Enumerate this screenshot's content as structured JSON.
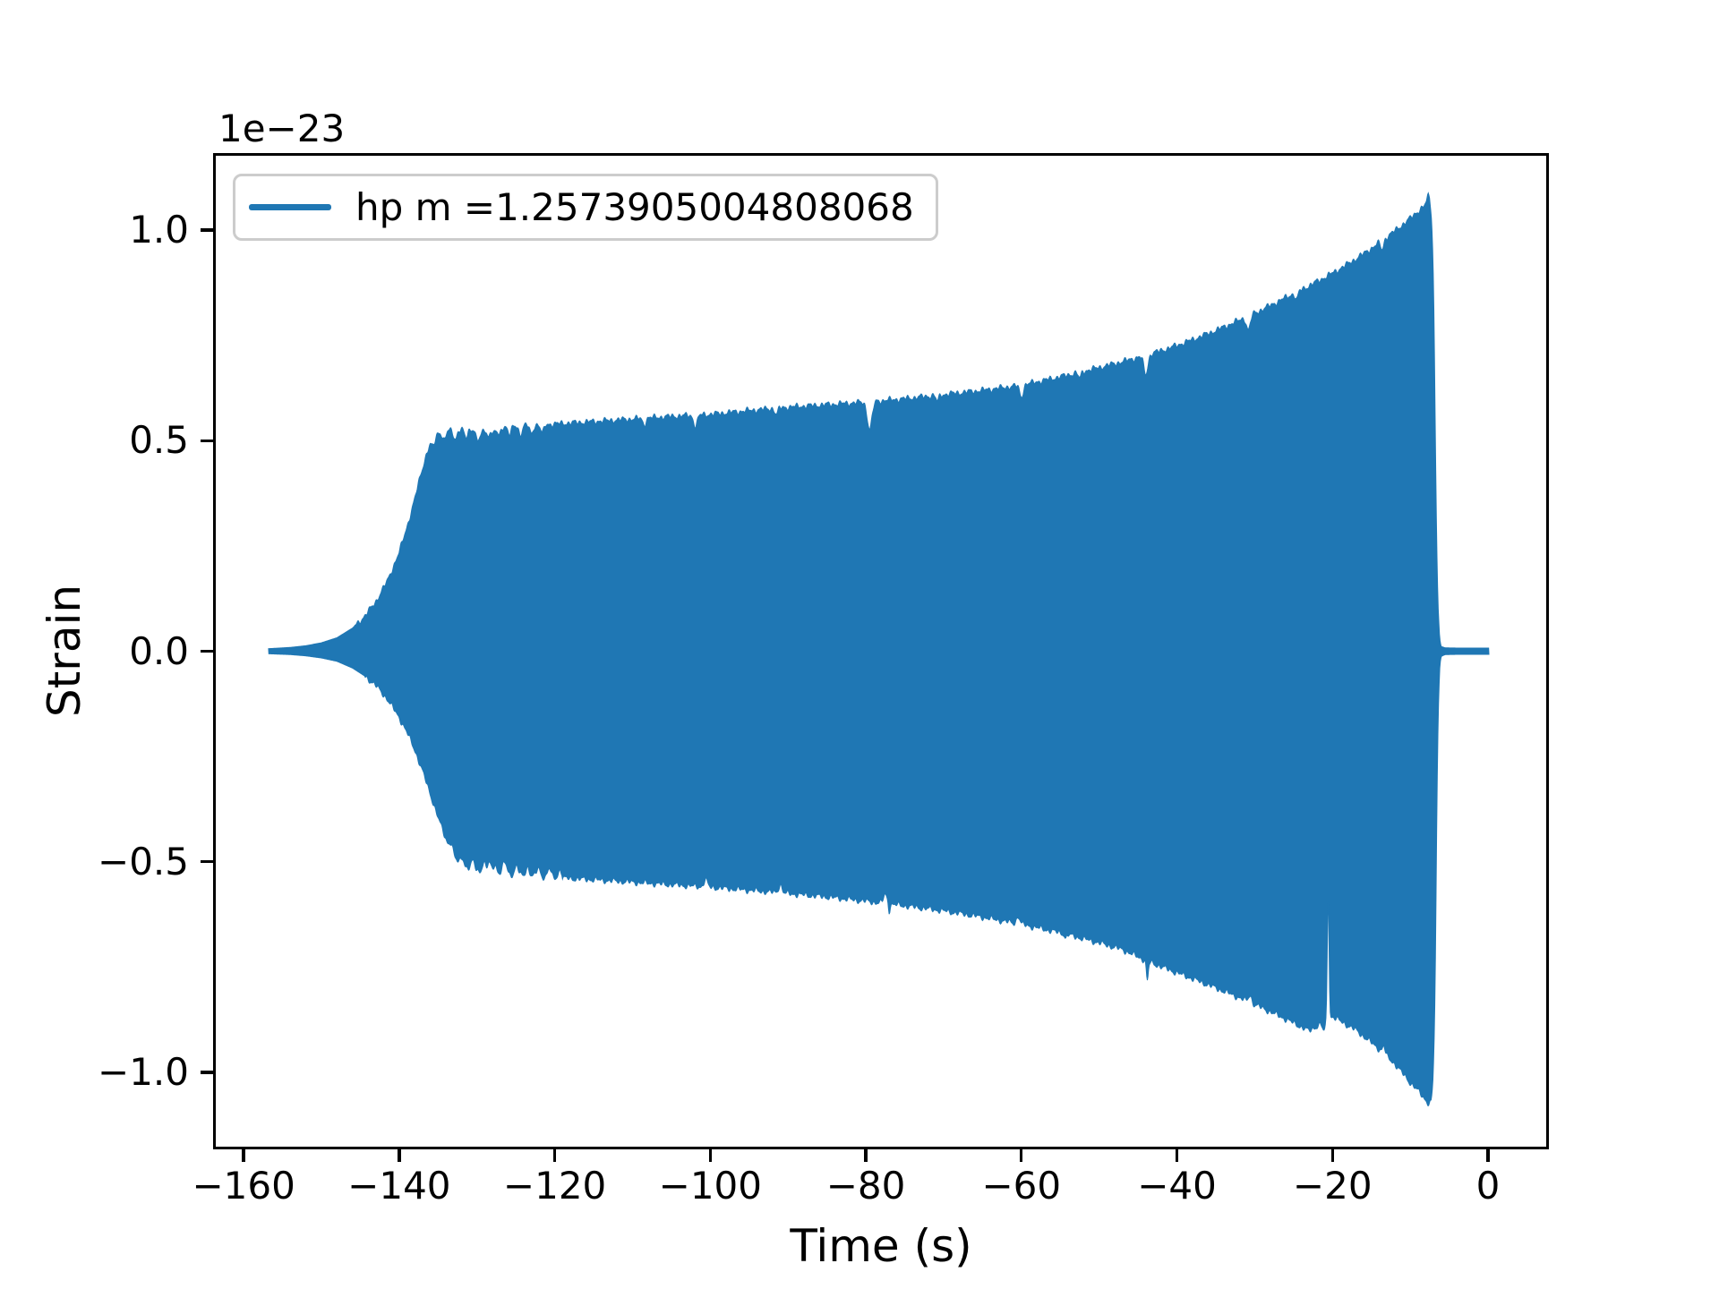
{
  "figure": {
    "background": "#ffffff"
  },
  "axes": {
    "offset_text": "1e−23",
    "xlabel": "Time (s)",
    "ylabel": "Strain",
    "spine_color": "#000000"
  },
  "legend": {
    "label": "hp m =1.2573905004808068",
    "line_color": "#1f77b4",
    "border_color": "#cccccc",
    "position": "upper left"
  },
  "chart_data": {
    "type": "line",
    "title": "",
    "xlabel": "Time (s)",
    "ylabel": "Strain",
    "y_offset_factor": "1e−23",
    "grid": false,
    "legend_position": "upper left",
    "series": [
      {
        "name": "hp m =1.2573905004808068",
        "color": "#1f77b4"
      }
    ],
    "xlim": [
      -163.7,
      7.6
    ],
    "ylim": [
      -1.1786,
      1.1786
    ],
    "x_ticks": [
      {
        "value": -160,
        "label": "−160"
      },
      {
        "value": -140,
        "label": "−140"
      },
      {
        "value": -120,
        "label": "−120"
      },
      {
        "value": -100,
        "label": "−100"
      },
      {
        "value": -80,
        "label": "−80"
      },
      {
        "value": -60,
        "label": "−60"
      },
      {
        "value": -40,
        "label": "−40"
      },
      {
        "value": -20,
        "label": "−20"
      },
      {
        "value": 0,
        "label": "0"
      }
    ],
    "y_ticks": [
      {
        "value": 1.0,
        "label": "1.0"
      },
      {
        "value": 0.5,
        "label": "0.5"
      },
      {
        "value": 0.0,
        "label": "0.0"
      },
      {
        "value": -0.5,
        "label": "−0.5"
      },
      {
        "value": -1.0,
        "label": "−1.0"
      }
    ],
    "t_start": -156.8,
    "t_end": 0.12,
    "envelope_upper": [
      [
        -156.8,
        0.006
      ],
      [
        -154,
        0.009
      ],
      [
        -152,
        0.013
      ],
      [
        -150,
        0.02
      ],
      [
        -148,
        0.032
      ],
      [
        -146,
        0.055
      ],
      [
        -144.5,
        0.082
      ],
      [
        -143,
        0.118
      ],
      [
        -141.5,
        0.168
      ],
      [
        -140,
        0.235
      ],
      [
        -139,
        0.295
      ],
      [
        -138,
        0.362
      ],
      [
        -137.2,
        0.422
      ],
      [
        -136.5,
        0.468
      ],
      [
        -136,
        0.494
      ],
      [
        -135.5,
        0.51
      ],
      [
        -135,
        0.518
      ],
      [
        -134,
        0.523
      ],
      [
        -132,
        0.526
      ],
      [
        -130,
        0.529
      ],
      [
        -128,
        0.532
      ],
      [
        -126,
        0.534
      ],
      [
        -124,
        0.536
      ],
      [
        -122,
        0.538
      ],
      [
        -120,
        0.54
      ],
      [
        -115,
        0.546
      ],
      [
        -110,
        0.552
      ],
      [
        -105,
        0.558
      ],
      [
        -100,
        0.563
      ],
      [
        -95,
        0.572
      ],
      [
        -90,
        0.58
      ],
      [
        -85,
        0.586
      ],
      [
        -80,
        0.592
      ],
      [
        -75,
        0.6
      ],
      [
        -70,
        0.61
      ],
      [
        -65,
        0.62
      ],
      [
        -60,
        0.632
      ],
      [
        -55,
        0.652
      ],
      [
        -50,
        0.674
      ],
      [
        -47,
        0.688
      ],
      [
        -44,
        0.703
      ],
      [
        -41,
        0.72
      ],
      [
        -38,
        0.74
      ],
      [
        -35,
        0.762
      ],
      [
        -32,
        0.786
      ],
      [
        -29,
        0.812
      ],
      [
        -26,
        0.84
      ],
      [
        -23,
        0.868
      ],
      [
        -20,
        0.898
      ],
      [
        -18,
        0.92
      ],
      [
        -16,
        0.944
      ],
      [
        -14,
        0.97
      ],
      [
        -12,
        0.998
      ],
      [
        -11,
        1.013
      ],
      [
        -10,
        1.028
      ],
      [
        -9.3,
        1.04
      ],
      [
        -8.7,
        1.05
      ],
      [
        -8.2,
        1.057
      ],
      [
        -7.9,
        1.068
      ],
      [
        -7.7,
        1.082
      ],
      [
        -7.5,
        1.078
      ],
      [
        -7.3,
        1.04
      ],
      [
        -7.15,
        0.98
      ],
      [
        -7.0,
        0.87
      ],
      [
        -6.9,
        0.73
      ],
      [
        -6.8,
        0.56
      ],
      [
        -6.7,
        0.4
      ],
      [
        -6.6,
        0.27
      ],
      [
        -6.5,
        0.17
      ],
      [
        -6.4,
        0.1
      ],
      [
        -6.3,
        0.055
      ],
      [
        -6.2,
        0.03
      ],
      [
        -6.1,
        0.017
      ],
      [
        -6.0,
        0.011
      ],
      [
        -5.5,
        0.008
      ],
      [
        -4,
        0.0075
      ],
      [
        -2,
        0.0075
      ],
      [
        0.12,
        0.0075
      ]
    ],
    "envelope_lower": [
      [
        -156.8,
        0.006
      ],
      [
        -154,
        0.008
      ],
      [
        -152,
        0.011
      ],
      [
        -150,
        0.016
      ],
      [
        -148,
        0.024
      ],
      [
        -146,
        0.04
      ],
      [
        -144.5,
        0.058
      ],
      [
        -143,
        0.082
      ],
      [
        -141.5,
        0.115
      ],
      [
        -140,
        0.158
      ],
      [
        -139,
        0.193
      ],
      [
        -138,
        0.235
      ],
      [
        -137,
        0.285
      ],
      [
        -136,
        0.34
      ],
      [
        -135,
        0.395
      ],
      [
        -134.2,
        0.437
      ],
      [
        -133.5,
        0.468
      ],
      [
        -133,
        0.487
      ],
      [
        -132.5,
        0.5
      ],
      [
        -132,
        0.508
      ],
      [
        -131.5,
        0.513
      ],
      [
        -130.5,
        0.519
      ],
      [
        -129,
        0.524
      ],
      [
        -127,
        0.528
      ],
      [
        -125,
        0.531
      ],
      [
        -122,
        0.535
      ],
      [
        -120,
        0.538
      ],
      [
        -115,
        0.543
      ],
      [
        -110,
        0.549
      ],
      [
        -105,
        0.555
      ],
      [
        -100,
        0.561
      ],
      [
        -95,
        0.568
      ],
      [
        -90,
        0.576
      ],
      [
        -85,
        0.584
      ],
      [
        -80,
        0.594
      ],
      [
        -75,
        0.605
      ],
      [
        -70,
        0.617
      ],
      [
        -65,
        0.632
      ],
      [
        -60,
        0.649
      ],
      [
        -55,
        0.669
      ],
      [
        -50,
        0.693
      ],
      [
        -47,
        0.709
      ],
      [
        -44,
        0.735
      ],
      [
        -41,
        0.757
      ],
      [
        -38,
        0.778
      ],
      [
        -35,
        0.8
      ],
      [
        -32,
        0.823
      ],
      [
        -29,
        0.848
      ],
      [
        -26,
        0.874
      ],
      [
        -23,
        0.902
      ],
      [
        -20,
        0.868
      ],
      [
        -17,
        0.9
      ],
      [
        -14,
        0.945
      ],
      [
        -12,
        0.98
      ],
      [
        -10,
        1.025
      ],
      [
        -9,
        1.044
      ],
      [
        -8.2,
        1.062
      ],
      [
        -7.6,
        1.075
      ],
      [
        -7.3,
        1.07
      ],
      [
        -7.1,
        1.03
      ],
      [
        -6.95,
        0.95
      ],
      [
        -6.8,
        0.8
      ],
      [
        -6.7,
        0.62
      ],
      [
        -6.6,
        0.43
      ],
      [
        -6.5,
        0.27
      ],
      [
        -6.4,
        0.15
      ],
      [
        -6.3,
        0.08
      ],
      [
        -6.2,
        0.04
      ],
      [
        -6.1,
        0.02
      ],
      [
        -6.0,
        0.012
      ],
      [
        -5.5,
        0.008
      ],
      [
        -4,
        0.0075
      ],
      [
        -2,
        0.0075
      ],
      [
        0.12,
        0.0075
      ]
    ],
    "notches_upper": [
      [
        -129.6,
        0.22,
        0.022
      ],
      [
        -127.9,
        0.2,
        0.018
      ],
      [
        -108.5,
        0.2,
        0.015
      ],
      [
        -101.9,
        0.24,
        0.026
      ],
      [
        -91.5,
        0.2,
        0.015
      ],
      [
        -79.5,
        0.3,
        0.065
      ],
      [
        -70.8,
        0.18,
        0.015
      ],
      [
        -60.0,
        0.22,
        0.028
      ],
      [
        -52.5,
        0.18,
        0.015
      ],
      [
        -44.0,
        0.26,
        0.045
      ],
      [
        -30.8,
        0.24,
        0.034
      ],
      [
        -24.6,
        0.18,
        0.018
      ],
      [
        -13.6,
        0.18,
        0.022
      ]
    ],
    "notches_lower": [
      [
        -128.4,
        0.22,
        0.022
      ],
      [
        -126.6,
        0.18,
        0.015
      ],
      [
        -100.6,
        0.22,
        0.018
      ],
      [
        -91.0,
        0.22,
        0.02
      ],
      [
        -77.5,
        0.22,
        0.022
      ],
      [
        -60.4,
        0.2,
        0.018
      ],
      [
        -30.6,
        0.2,
        0.018
      ],
      [
        -20.55,
        0.11,
        0.3
      ],
      [
        -13.4,
        0.16,
        0.018
      ]
    ],
    "spikes_upper": [],
    "spikes_lower": [
      [
        -43.8,
        0.12,
        0.048
      ],
      [
        -21.1,
        0.18,
        0.022
      ],
      [
        -77.0,
        0.09,
        0.018
      ],
      [
        -54.3,
        0.1,
        0.012
      ]
    ],
    "lobe_modulation": {
      "upper": [
        -136.3,
        -121.0,
        1.4,
        0.02
      ],
      "lower": [
        -134.0,
        -119.0,
        1.4,
        0.02
      ]
    },
    "peak_strain_1e23": 1.08,
    "peak_time_s": -7.7
  }
}
